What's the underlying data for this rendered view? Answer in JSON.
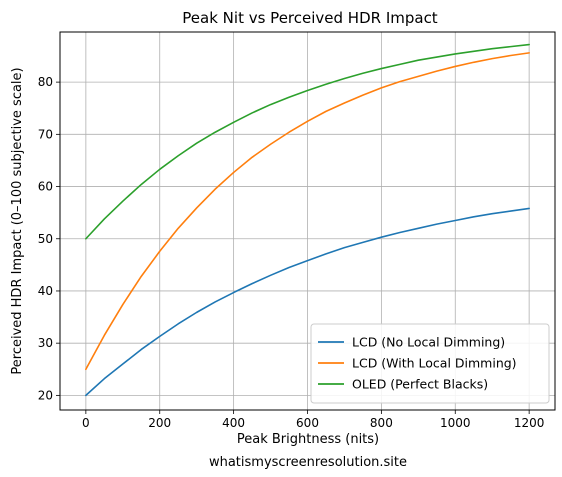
{
  "chart_data": {
    "type": "line",
    "title": "Peak Nit vs Perceived HDR Impact",
    "xlabel": "Peak Brightness (nits)",
    "ylabel": "Perceived HDR Impact (0–100 subjective scale)",
    "xlim": [
      -70,
      1270
    ],
    "ylim": [
      17.2,
      89.6
    ],
    "xticks": [
      0,
      200,
      400,
      600,
      800,
      1000,
      1200
    ],
    "yticks": [
      20,
      30,
      40,
      50,
      60,
      70,
      80
    ],
    "grid": true,
    "legend_position": "lower-right",
    "x": [
      0,
      50,
      100,
      150,
      200,
      250,
      300,
      350,
      400,
      450,
      500,
      550,
      600,
      650,
      700,
      750,
      800,
      850,
      900,
      950,
      1000,
      1050,
      1100,
      1150,
      1200
    ],
    "series": [
      {
        "name": "LCD (No Local Dimming)",
        "color": "#1f77b4",
        "values": [
          20.0,
          23.2,
          26.0,
          28.8,
          31.3,
          33.7,
          35.9,
          37.9,
          39.7,
          41.4,
          43.0,
          44.5,
          45.8,
          47.1,
          48.3,
          49.3,
          50.3,
          51.2,
          52.0,
          52.8,
          53.5,
          54.2,
          54.8,
          55.3,
          55.8
        ]
      },
      {
        "name": "LCD (With Local Dimming)",
        "color": "#ff7f0e",
        "values": [
          25.0,
          31.5,
          37.4,
          42.8,
          47.6,
          52.0,
          55.9,
          59.5,
          62.7,
          65.6,
          68.1,
          70.4,
          72.5,
          74.4,
          76.0,
          77.5,
          78.9,
          80.1,
          81.1,
          82.1,
          83.0,
          83.8,
          84.5,
          85.1,
          85.6
        ]
      },
      {
        "name": "OLED (Perfect Blacks)",
        "color": "#2ca02c",
        "values": [
          50.0,
          53.8,
          57.2,
          60.4,
          63.3,
          65.9,
          68.3,
          70.4,
          72.3,
          74.1,
          75.7,
          77.1,
          78.4,
          79.6,
          80.7,
          81.7,
          82.6,
          83.4,
          84.2,
          84.8,
          85.4,
          85.9,
          86.4,
          86.8,
          87.2
        ]
      }
    ]
  },
  "footer": {
    "text": "whatismyscreenresolution.site"
  },
  "colors": {
    "grid": "#b0b0b0",
    "axis": "#000000",
    "background": "#ffffff"
  }
}
